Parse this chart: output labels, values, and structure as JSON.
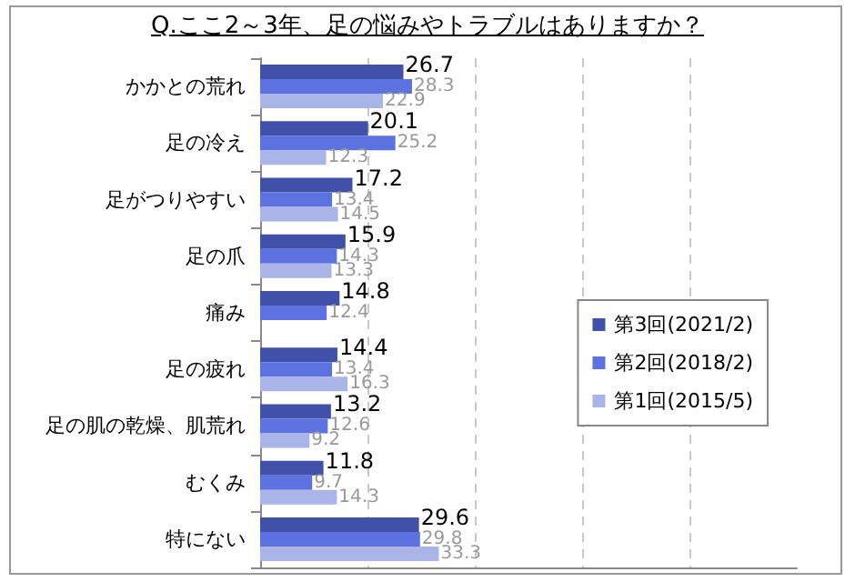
{
  "chart_data": {
    "type": "bar",
    "orientation": "horizontal",
    "title": "Q.ここ2～3年、足の悩みやトラブルはありますか？",
    "categories": [
      "かかとの荒れ",
      "足の冷え",
      "足がつりやすい",
      "足の爪",
      "痛み",
      "足の疲れ",
      "足の肌の乾燥、肌荒れ",
      "むくみ",
      "特にない"
    ],
    "series": [
      {
        "name": "第3回(2021/2)",
        "color": "#4150a8",
        "values": [
          26.7,
          20.1,
          17.2,
          15.9,
          14.8,
          14.4,
          13.2,
          11.8,
          29.6
        ]
      },
      {
        "name": "第2回(2018/2)",
        "color": "#5c72e0",
        "values": [
          28.3,
          25.2,
          13.4,
          14.3,
          12.4,
          13.4,
          12.6,
          9.7,
          29.8
        ]
      },
      {
        "name": "第1回(2015/5)",
        "color": "#aab4e6",
        "values": [
          22.9,
          12.3,
          14.5,
          13.3,
          null,
          16.3,
          9.2,
          14.3,
          33.3
        ]
      }
    ],
    "xlim": [
      0,
      100
    ],
    "xticks": [
      {
        "value": 20,
        "label": null
      },
      {
        "value": 40,
        "label": null
      },
      {
        "value": 60,
        "label": null
      },
      {
        "value": 80,
        "label": null
      }
    ],
    "tick_labels": "y",
    "grid": "x",
    "legend": "right",
    "data_labels": true
  }
}
